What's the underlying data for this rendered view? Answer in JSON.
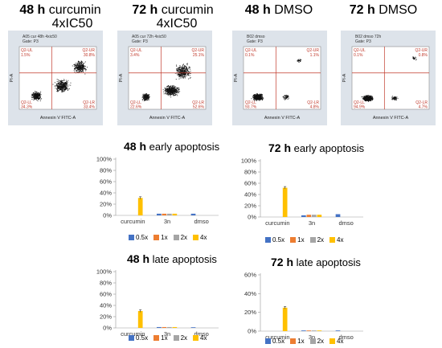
{
  "panel_titles": [
    {
      "hours": "48 h",
      "line1": "curcumin",
      "line2": "4xIC50"
    },
    {
      "hours": "72 h",
      "line1": "curcumin",
      "line2": "4xIC50"
    },
    {
      "hours": "48 h",
      "line1": "DMSO",
      "line2": ""
    },
    {
      "hours": "72 h",
      "line1": "DMSO",
      "line2": ""
    }
  ],
  "flow_plots": [
    {
      "sample": "A05 cur 48h 4xic50",
      "gate": "Gate: P3",
      "ul": "Q2-UL",
      "ul_val": "1.5%",
      "ur": "Q2-UR",
      "ur_val": "30.8%",
      "ll": "Q2-LL",
      "ll_val": "34.3%",
      "lr": "Q2-LR",
      "lr_val": "33.4%",
      "xlabel": "Annexin V FITC-A",
      "ylabel": "PI-A"
    },
    {
      "sample": "A05 cur 72h 4xic50",
      "gate": "Gate: P3",
      "ul": "Q2-UL",
      "ul_val": "3.4%",
      "ur": "Q2-UR",
      "ur_val": "25.1%",
      "ll": "Q2-LL",
      "ll_val": "22.6%",
      "lr": "Q2-LR",
      "lr_val": "52.6%",
      "xlabel": "Annexin V FITC-A",
      "ylabel": "PI-A"
    },
    {
      "sample": "B02 dmso",
      "gate": "Gate: P3",
      "ul": "Q2-UL",
      "ul_val": "0.1%",
      "ur": "Q2-UR",
      "ur_val": "1.1%",
      "ll": "Q2-LL",
      "ll_val": "93.7%",
      "lr": "Q2-LR",
      "lr_val": "4.8%",
      "xlabel": "Annexin V FITC-A",
      "ylabel": "PI-A"
    },
    {
      "sample": "B02 dmso 72h",
      "gate": "Gate: P3",
      "ul": "Q2-UL",
      "ul_val": "0.1%",
      "ur": "Q2-UR",
      "ur_val": "0.8%",
      "ll": "Q2-LL",
      "ll_val": "94.9%",
      "lr": "Q2-LR",
      "lr_val": "4.7%",
      "xlabel": "Annexin V FITC-A",
      "ylabel": "PI-A"
    }
  ],
  "colors": {
    "0.5x": "#4472c4",
    "1x": "#ed7d31",
    "2x": "#a5a5a5",
    "4x": "#ffc000"
  },
  "chart_data": [
    {
      "type": "bar",
      "hours": "48 h",
      "title": "early apoptosis",
      "categories": [
        "curcumin",
        "3n",
        "dmso"
      ],
      "yticks": [
        "0%",
        "20%",
        "40%",
        "60%",
        "80%",
        "100%"
      ],
      "ylim": [
        0,
        100
      ],
      "series": [
        {
          "name": "0.5x",
          "values": [
            null,
            3,
            3
          ]
        },
        {
          "name": "1x",
          "values": [
            null,
            3,
            null
          ]
        },
        {
          "name": "2x",
          "values": [
            null,
            3,
            null
          ]
        },
        {
          "name": "4x",
          "values": [
            31,
            3,
            null
          ]
        }
      ],
      "legend_position": "bottom"
    },
    {
      "type": "bar",
      "hours": "72 h",
      "title": "early apoptosis",
      "categories": [
        "curcumin",
        "3n",
        "dmso"
      ],
      "yticks": [
        "0%",
        "20%",
        "40%",
        "60%",
        "80%",
        "100%"
      ],
      "ylim": [
        0,
        100
      ],
      "series": [
        {
          "name": "0.5x",
          "values": [
            null,
            3,
            5
          ]
        },
        {
          "name": "1x",
          "values": [
            null,
            4,
            null
          ]
        },
        {
          "name": "2x",
          "values": [
            null,
            4,
            null
          ]
        },
        {
          "name": "4x",
          "values": [
            52,
            4,
            null
          ]
        }
      ],
      "legend_position": "bottom"
    },
    {
      "type": "bar",
      "hours": "48 h",
      "title": "late apoptosis",
      "categories": [
        "curcumin",
        "3n",
        "dmso"
      ],
      "yticks": [
        "0%",
        "20%",
        "40%",
        "60%",
        "80%",
        "100%"
      ],
      "ylim": [
        0,
        100
      ],
      "series": [
        {
          "name": "0.5x",
          "values": [
            null,
            1.5,
            1
          ]
        },
        {
          "name": "1x",
          "values": [
            null,
            1.5,
            null
          ]
        },
        {
          "name": "2x",
          "values": [
            null,
            1.5,
            null
          ]
        },
        {
          "name": "4x",
          "values": [
            30,
            1.5,
            null
          ]
        }
      ],
      "legend_position": "bottom"
    },
    {
      "type": "bar",
      "hours": "72 h",
      "title": "late apoptosis",
      "categories": [
        "curcumin",
        "3n",
        "dmso"
      ],
      "yticks": [
        "0%",
        "20%",
        "40%",
        "60%"
      ],
      "ylim": [
        0,
        60
      ],
      "series": [
        {
          "name": "0.5x",
          "values": [
            null,
            0.5,
            0.5
          ]
        },
        {
          "name": "1x",
          "values": [
            null,
            0.5,
            null
          ]
        },
        {
          "name": "2x",
          "values": [
            null,
            0.5,
            null
          ]
        },
        {
          "name": "4x",
          "values": [
            25,
            0.5,
            null
          ]
        }
      ],
      "legend_position": "bottom"
    }
  ]
}
